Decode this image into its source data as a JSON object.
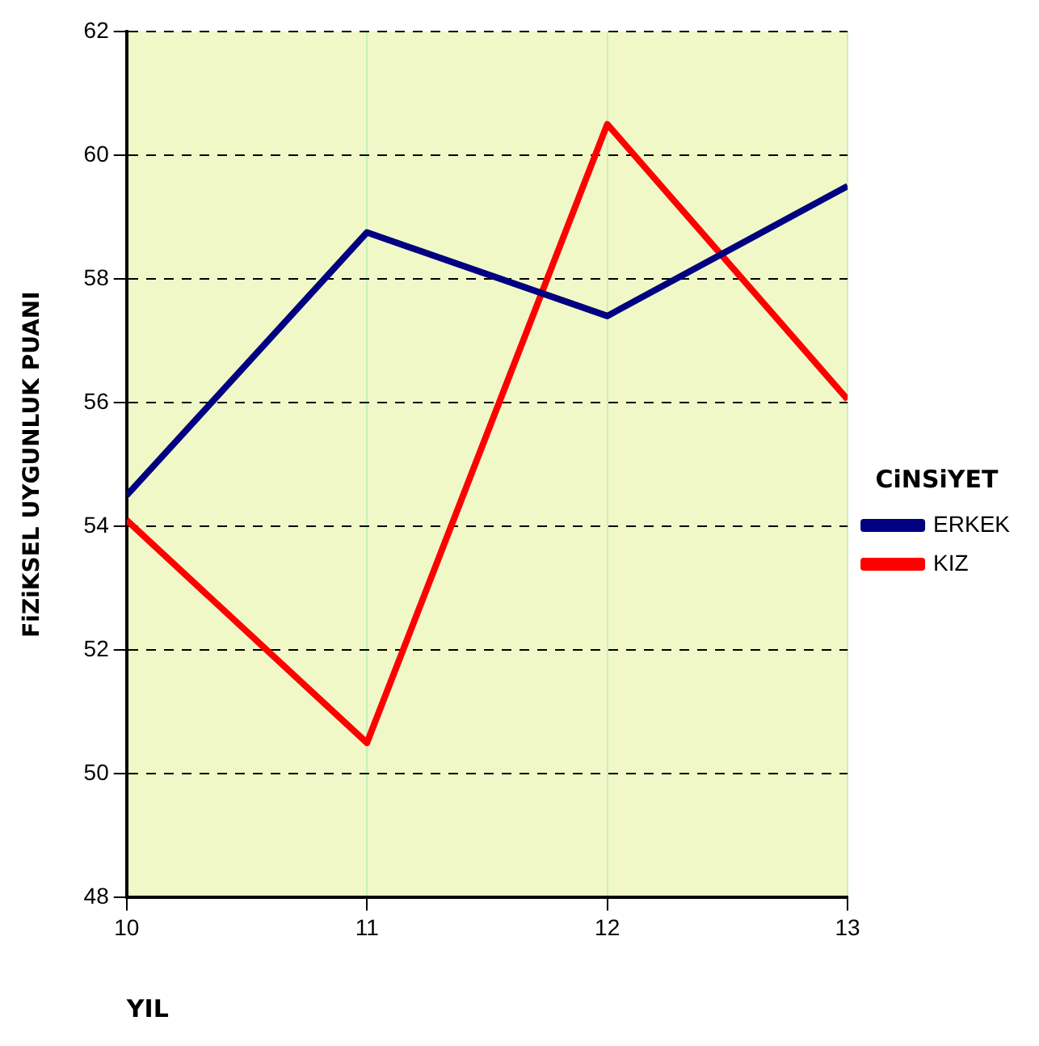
{
  "chart_data": {
    "type": "line",
    "xlabel": "YIL",
    "ylabel": "FiZiKSEL UYGUNLUK PUANI",
    "legend_title": "CiNSiYET",
    "x": [
      10,
      11,
      12,
      13
    ],
    "series": [
      {
        "name": "ERKEK",
        "color": "#000080",
        "values": [
          54.5,
          58.75,
          57.4,
          59.5
        ]
      },
      {
        "name": "KIZ",
        "color": "#ff0000",
        "values": [
          54.1,
          50.5,
          60.5,
          56.05
        ]
      }
    ],
    "xlim": [
      10,
      13
    ],
    "xticks": [
      10,
      11,
      12,
      13
    ],
    "ylim": [
      48,
      62
    ],
    "yticks": [
      48,
      50,
      52,
      54,
      56,
      58,
      60,
      62
    ],
    "grid": true,
    "legend": "right",
    "marker": "none",
    "line_style": "solid"
  }
}
